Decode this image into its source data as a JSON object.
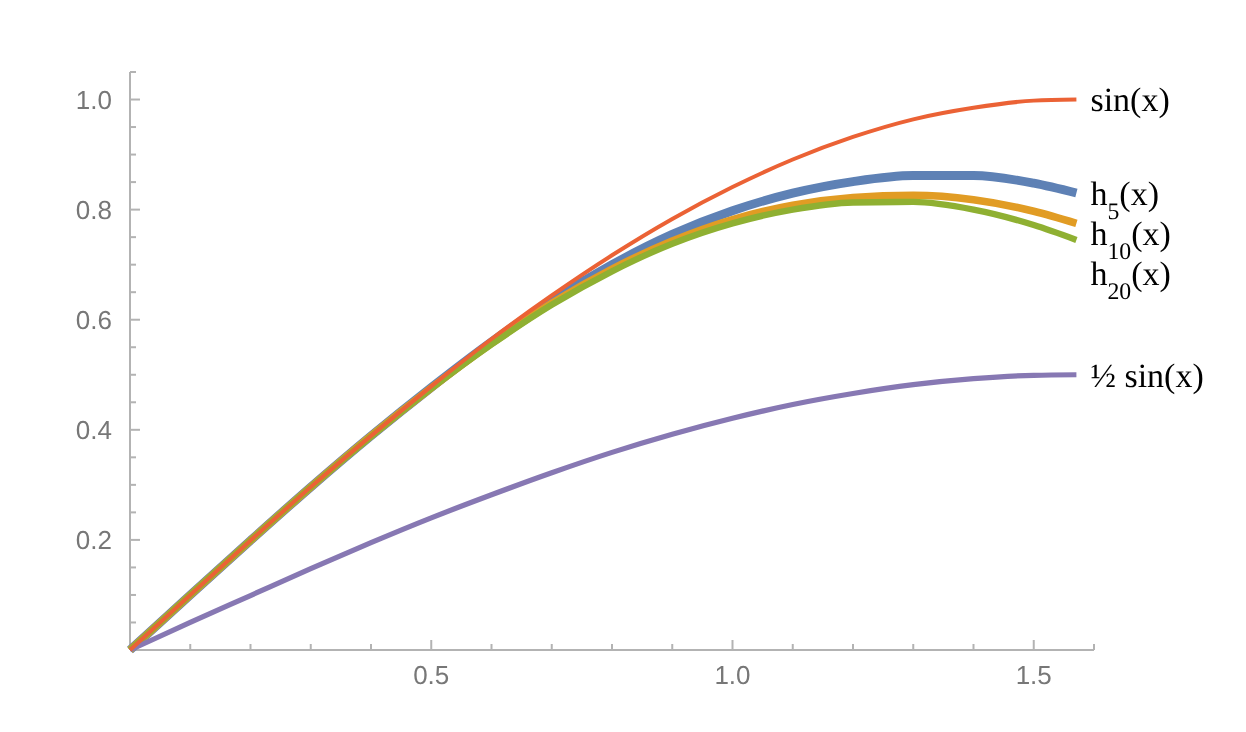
{
  "chart_data": {
    "type": "line",
    "xlim": [
      0,
      1.6
    ],
    "ylim": [
      0,
      1.05
    ],
    "x": [
      0,
      0.1,
      0.2,
      0.3,
      0.4,
      0.5,
      0.6,
      0.7,
      0.8,
      0.9,
      1.0,
      1.1,
      1.2,
      1.3,
      1.4,
      1.5,
      1.5708
    ],
    "xticks": [
      {
        "value": 0.1,
        "label": null
      },
      {
        "value": 0.2,
        "label": null
      },
      {
        "value": 0.3,
        "label": null
      },
      {
        "value": 0.4,
        "label": null
      },
      0.5,
      {
        "value": 0.6,
        "label": null
      },
      {
        "value": 0.7,
        "label": null
      },
      {
        "value": 0.8,
        "label": null
      },
      {
        "value": 0.9,
        "label": null
      },
      {
        "value": 1,
        "label": "1.0"
      },
      {
        "value": 1.1,
        "label": null
      },
      {
        "value": 1.2,
        "label": null
      },
      {
        "value": 1.3,
        "label": null
      },
      {
        "value": 1.4,
        "label": null
      },
      1.5,
      {
        "value": 1.6,
        "label": null
      }
    ],
    "yticks": [
      {
        "value": 0.05,
        "label": null
      },
      {
        "value": 0.1,
        "label": null
      },
      {
        "value": 0.15,
        "label": null
      },
      0.2,
      {
        "value": 0.25,
        "label": null
      },
      {
        "value": 0.3,
        "label": null
      },
      {
        "value": 0.35,
        "label": null
      },
      0.4,
      {
        "value": 0.45,
        "label": null
      },
      {
        "value": 0.5,
        "label": null
      },
      {
        "value": 0.55,
        "label": null
      },
      0.6,
      {
        "value": 0.65,
        "label": null
      },
      {
        "value": 0.7,
        "label": null
      },
      {
        "value": 0.75,
        "label": null
      },
      0.8,
      {
        "value": 0.85,
        "label": null
      },
      {
        "value": 0.9,
        "label": null
      },
      {
        "value": 0.95,
        "label": null
      },
      {
        "value": 1,
        "label": "1.0"
      },
      {
        "value": 1.05,
        "label": null
      }
    ],
    "grid": false,
    "marker": "none",
    "line_style": "solid",
    "series": [
      {
        "name": "h$_{5}$(x)",
        "color": "#5e81b5",
        "values": [
          0,
          0.1,
          0.199,
          0.296,
          0.389,
          0.477,
          0.56,
          0.635,
          0.7,
          0.755,
          0.798,
          0.83,
          0.851,
          0.862,
          0.862,
          0.848,
          0.83
        ]
      },
      {
        "name": "h$_{10}$(x)",
        "color": "#e19c24",
        "values": [
          0,
          0.1,
          0.199,
          0.296,
          0.389,
          0.476,
          0.557,
          0.63,
          0.692,
          0.743,
          0.782,
          0.808,
          0.822,
          0.826,
          0.818,
          0.797,
          0.775
        ]
      },
      {
        "name": "h$_{20}$(x)",
        "color": "#8fb032",
        "values": [
          0,
          0.1,
          0.199,
          0.296,
          0.388,
          0.475,
          0.555,
          0.627,
          0.688,
          0.738,
          0.775,
          0.8,
          0.813,
          0.814,
          0.8,
          0.772,
          0.745
        ]
      },
      {
        "name": "½ sin(x)",
        "color": "#8778b3",
        "values": [
          0,
          0.05,
          0.099,
          0.148,
          0.195,
          0.24,
          0.282,
          0.322,
          0.359,
          0.392,
          0.421,
          0.446,
          0.466,
          0.482,
          0.493,
          0.499,
          0.5
        ]
      },
      {
        "name": "sin(x)",
        "color": "#eb6235",
        "values": [
          0,
          0.1,
          0.199,
          0.296,
          0.389,
          0.479,
          0.565,
          0.644,
          0.717,
          0.783,
          0.841,
          0.891,
          0.932,
          0.964,
          0.985,
          0.998,
          1.0
        ]
      }
    ]
  }
}
